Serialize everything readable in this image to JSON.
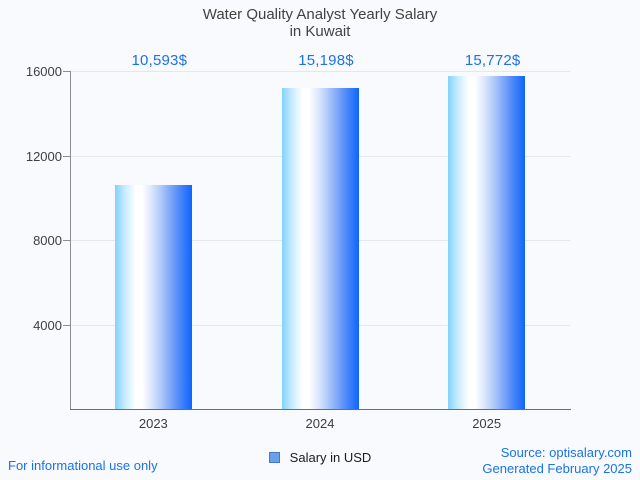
{
  "title": {
    "line1": "Water Quality Analyst Yearly Salary",
    "line2": "in Kuwait"
  },
  "chart_data": {
    "type": "bar",
    "title": "Water Quality Analyst Yearly Salary in Kuwait",
    "categories": [
      "2023",
      "2024",
      "2025"
    ],
    "series": [
      {
        "name": "Salary in USD",
        "values": [
          10593,
          15198,
          15772
        ]
      }
    ],
    "value_labels": [
      "10,593$",
      "15,198$",
      "15,772$"
    ],
    "xlabel": "",
    "ylabel": "",
    "ylim": [
      0,
      16000
    ],
    "yticks": [
      4000,
      8000,
      12000,
      16000
    ],
    "ytick_labels": [
      "4000",
      "8000",
      "12000",
      "16000"
    ],
    "grid": true,
    "legend_position": "bottom",
    "colors": {
      "value_label": "#1a73e8",
      "axis_text": "#404040",
      "gridline": "#e4e7eb",
      "axis_line": "#6e6e6e"
    },
    "bar_gradient_stops": [
      [
        "#82d2fc",
        "0%"
      ],
      [
        "#c9ecfe",
        "13%"
      ],
      [
        "#ffffff",
        "27%"
      ],
      [
        "#ffffff",
        "35%"
      ],
      [
        "#dde8fd",
        "47%"
      ],
      [
        "#b5cdfa",
        "58%"
      ],
      [
        "#82aaf9",
        "71%"
      ],
      [
        "#4886f8",
        "85%"
      ],
      [
        "#0f65fe",
        "100%"
      ]
    ]
  },
  "legend": {
    "label": "Salary in USD",
    "swatch_fill": "#6d9eeb",
    "swatch_border": "#3f7ad1"
  },
  "footer": {
    "left_note": "For informational use only",
    "source": "Source: optisalary.com",
    "generated": "Generated February 2025"
  }
}
